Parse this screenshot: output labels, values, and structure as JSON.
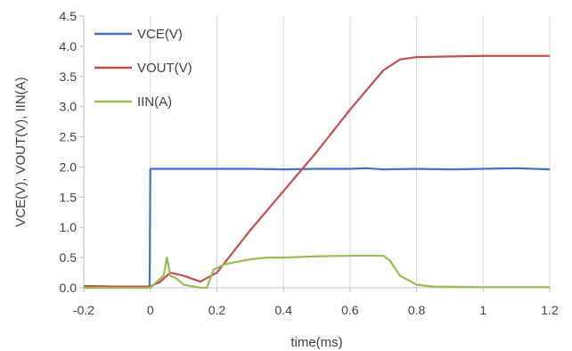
{
  "chart_data": {
    "type": "line",
    "title": "",
    "xlabel": "time(ms)",
    "ylabel": "VCE(V), VOUT(V), IIN(A)",
    "xlim": [
      -0.2,
      1.2
    ],
    "ylim": [
      0,
      4.5
    ],
    "x_ticks": [
      -0.2,
      0,
      0.2,
      0.4,
      0.6,
      0.8,
      1,
      1.2
    ],
    "x_tick_labels": [
      "-0.2",
      "0",
      "0.2",
      "0.4",
      "0.6",
      "0.8",
      "1",
      "1.2"
    ],
    "y_ticks": [
      0,
      0.5,
      1,
      1.5,
      2,
      2.5,
      3,
      3.5,
      4,
      4.5
    ],
    "y_tick_labels": [
      "0.0",
      "0.5",
      "1.0",
      "1.5",
      "2.0",
      "2.5",
      "3.0",
      "3.5",
      "4.0",
      "4.5"
    ],
    "grid": "vertical gridlines at x ticks",
    "legend_placement": "top-left",
    "series": [
      {
        "name": "VCE(V)",
        "color": "#4472c4",
        "x": [
          -0.2,
          -0.005,
          -0.002,
          0.0,
          0.005,
          0.1,
          0.2,
          0.3,
          0.4,
          0.5,
          0.6,
          0.65,
          0.7,
          0.8,
          0.9,
          1.0,
          1.1,
          1.2
        ],
        "y": [
          0.0,
          0.0,
          0.05,
          1.97,
          1.97,
          1.97,
          1.97,
          1.97,
          1.96,
          1.97,
          1.97,
          1.98,
          1.96,
          1.97,
          1.96,
          1.97,
          1.98,
          1.96
        ]
      },
      {
        "name": "VOUT(V)",
        "color": "#c0504d",
        "x": [
          -0.2,
          -0.1,
          0.0,
          0.03,
          0.06,
          0.1,
          0.15,
          0.2,
          0.3,
          0.4,
          0.5,
          0.6,
          0.7,
          0.75,
          0.8,
          0.9,
          1.0,
          1.1,
          1.2
        ],
        "y": [
          0.03,
          0.02,
          0.02,
          0.1,
          0.25,
          0.2,
          0.1,
          0.25,
          0.95,
          1.6,
          2.25,
          2.95,
          3.6,
          3.78,
          3.82,
          3.83,
          3.84,
          3.84,
          3.84
        ]
      },
      {
        "name": "IIN(A)",
        "color": "#9bbb59",
        "x": [
          -0.2,
          0.0,
          0.04,
          0.05,
          0.06,
          0.08,
          0.1,
          0.15,
          0.17,
          0.19,
          0.22,
          0.25,
          0.3,
          0.35,
          0.4,
          0.5,
          0.6,
          0.7,
          0.72,
          0.75,
          0.8,
          0.85,
          1.0,
          1.2
        ],
        "y": [
          0.0,
          0.0,
          0.2,
          0.5,
          0.2,
          0.15,
          0.05,
          0.0,
          0.0,
          0.3,
          0.38,
          0.42,
          0.47,
          0.5,
          0.5,
          0.52,
          0.53,
          0.53,
          0.45,
          0.2,
          0.05,
          0.02,
          0.01,
          0.01
        ]
      }
    ]
  }
}
